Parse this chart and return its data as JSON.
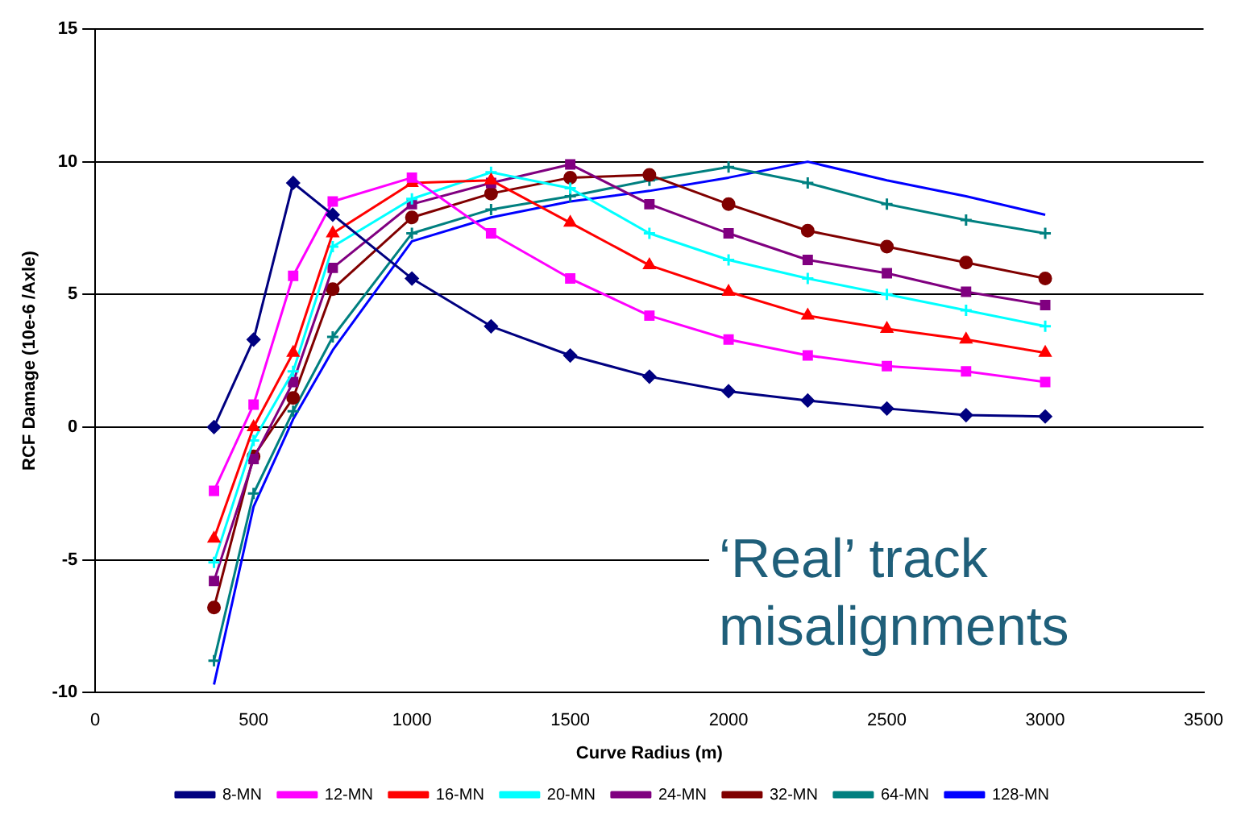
{
  "chart_data": {
    "type": "line",
    "xlabel": "Curve Radius (m)",
    "ylabel": "RCF Damage (10e-6 /Axle)",
    "annotations": [
      "‘Real’ track misalignments"
    ],
    "xlim": [
      0,
      3500
    ],
    "xticks": [
      0,
      500,
      1000,
      1500,
      2000,
      2500,
      3000,
      3500
    ],
    "ylim": [
      -10,
      15
    ],
    "yticks": [
      -10,
      -5,
      0,
      5,
      10,
      15
    ],
    "grid": "y",
    "legend": "bottom",
    "x": [
      375,
      500,
      625,
      750,
      1000,
      1250,
      1500,
      1750,
      2000,
      2250,
      2500,
      2750,
      3000
    ],
    "series": [
      {
        "name": "8-MN",
        "color": "#000080",
        "marker": "diamond",
        "values": [
          0,
          3.3,
          9.2,
          8.0,
          5.6,
          3.8,
          2.7,
          1.9,
          1.35,
          1.0,
          0.7,
          0.45,
          0.4
        ]
      },
      {
        "name": "12-MN",
        "color": "#ff00ff",
        "marker": "square",
        "values": [
          -2.4,
          0.85,
          5.7,
          8.5,
          9.4,
          7.3,
          5.6,
          4.2,
          3.3,
          2.7,
          2.3,
          2.1,
          1.7
        ]
      },
      {
        "name": "16-MN",
        "color": "#ff0000",
        "marker": "triangle",
        "values": [
          -4.2,
          0,
          2.8,
          7.3,
          9.2,
          9.3,
          7.7,
          6.1,
          5.1,
          4.2,
          3.7,
          3.3,
          2.8
        ]
      },
      {
        "name": "20-MN",
        "color": "#00ffff",
        "marker": "cross",
        "values": [
          -5.1,
          -0.5,
          2.1,
          6.8,
          8.6,
          9.6,
          9.0,
          7.3,
          6.3,
          5.6,
          5.0,
          4.4,
          3.8
        ]
      },
      {
        "name": "24-MN",
        "color": "#800080",
        "marker": "square",
        "values": [
          -5.8,
          -1.2,
          1.7,
          6.0,
          8.4,
          9.2,
          9.9,
          8.4,
          7.3,
          6.3,
          5.8,
          5.1,
          4.6
        ]
      },
      {
        "name": "32-MN",
        "color": "#800000",
        "marker": "circle",
        "values": [
          -6.8,
          -1.1,
          1.1,
          5.2,
          7.9,
          8.8,
          9.4,
          9.5,
          8.4,
          7.4,
          6.8,
          6.2,
          5.6
        ]
      },
      {
        "name": "64-MN",
        "color": "#008080",
        "marker": "cross",
        "values": [
          -8.8,
          -2.5,
          0.6,
          3.4,
          7.3,
          8.2,
          8.7,
          9.3,
          9.8,
          9.2,
          8.4,
          7.8,
          7.3
        ]
      },
      {
        "name": "128-MN",
        "color": "#0000ff",
        "marker": "none",
        "values": [
          -9.7,
          -3.0,
          0.3,
          2.9,
          7.0,
          7.9,
          8.5,
          8.9,
          9.4,
          10.0,
          9.3,
          8.7,
          8.0
        ]
      }
    ]
  }
}
